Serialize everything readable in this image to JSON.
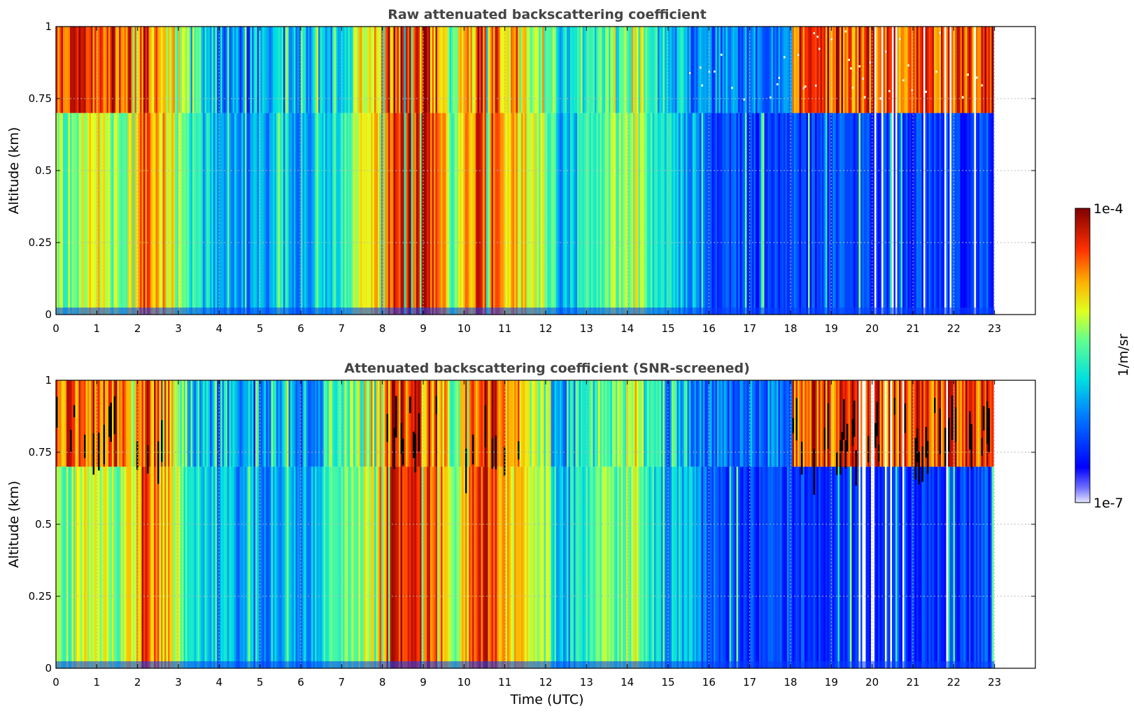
{
  "chart_data": [
    {
      "type": "heatmap",
      "title": "Raw attenuated backscattering coefficient",
      "xlabel": "",
      "ylabel": "Altitude (km)",
      "xlim": [
        0,
        24
      ],
      "ylim": [
        0,
        1
      ],
      "xticks": [
        "0",
        "1",
        "2",
        "3",
        "4",
        "5",
        "6",
        "7",
        "8",
        "9",
        "10",
        "11",
        "12",
        "13",
        "14",
        "15",
        "16",
        "17",
        "18",
        "19",
        "20",
        "21",
        "22",
        "23"
      ],
      "yticks": [
        "0",
        "0.25",
        "0.5",
        "0.75",
        "1"
      ],
      "grid": true,
      "data_extent_x": [
        0,
        23
      ],
      "colormap": "jet",
      "z_scale": "log",
      "zlim": [
        "1e-7",
        "1e-4"
      ]
    },
    {
      "type": "heatmap",
      "title": "Attenuated backscattering coefficient (SNR-screened)",
      "xlabel": "Time (UTC)",
      "ylabel": "Altitude (km)",
      "xlim": [
        0,
        24
      ],
      "ylim": [
        0,
        1
      ],
      "xticks": [
        "0",
        "1",
        "2",
        "3",
        "4",
        "5",
        "6",
        "7",
        "8",
        "9",
        "10",
        "11",
        "12",
        "13",
        "14",
        "15",
        "16",
        "17",
        "18",
        "19",
        "20",
        "21",
        "22",
        "23"
      ],
      "yticks": [
        "0",
        "0.25",
        "0.5",
        "0.75",
        "1"
      ],
      "grid": true,
      "data_extent_x": [
        0,
        23
      ],
      "colormap": "jet",
      "z_scale": "log",
      "zlim": [
        "1e-7",
        "1e-4"
      ]
    }
  ],
  "colorbar": {
    "label": "1/m/sr",
    "max_label": "1e-4",
    "min_label": "1e-7"
  },
  "colors": {
    "background": "#00008f",
    "low_cloud": "#0a3cff",
    "high": "#dc0000",
    "screened": "#000000"
  }
}
